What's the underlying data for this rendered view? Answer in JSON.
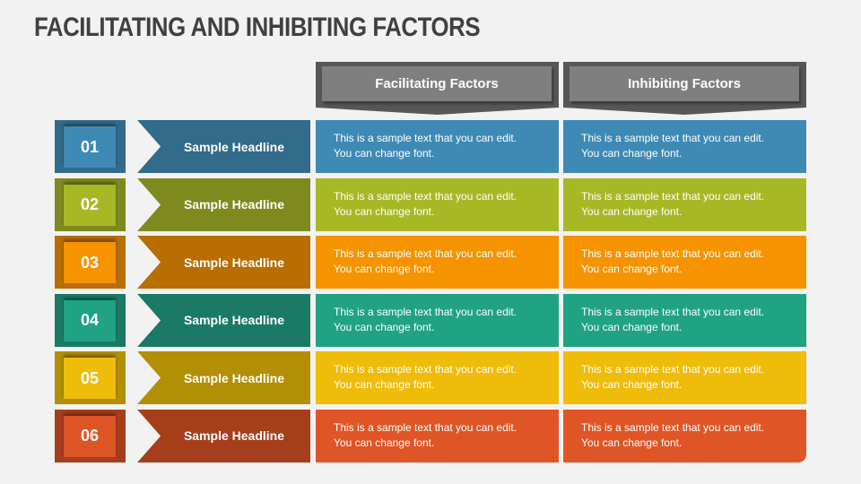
{
  "title": "FACILITATING AND INHIBITING FACTORS",
  "columns": {
    "facilitating": "Facilitating Factors",
    "inhibiting": "Inhibiting Factors"
  },
  "header_colors": {
    "outer": "#575757",
    "inner": "#7f7f7f"
  },
  "rows": [
    {
      "number": "01",
      "headline": "Sample Headline",
      "dark": "#336b8a",
      "light": "#3f8ab5",
      "facilitating": [
        "This is a sample text that you can edit.",
        "You can change font."
      ],
      "inhibiting": [
        "This is a sample text that you can edit.",
        "You can change font."
      ]
    },
    {
      "number": "02",
      "headline": "Sample Headline",
      "dark": "#7e8a1e",
      "light": "#a7b825",
      "facilitating": [
        "This is a sample text that you can edit.",
        "You can change font."
      ],
      "inhibiting": [
        "This is a sample text that you can edit.",
        "You can change font."
      ]
    },
    {
      "number": "03",
      "headline": "Sample Headline",
      "dark": "#b86e00",
      "light": "#f59300",
      "facilitating": [
        "This is a sample text that you can edit.",
        "You can change font."
      ],
      "inhibiting": [
        "This is a sample text that you can edit.",
        "You can change font."
      ]
    },
    {
      "number": "04",
      "headline": "Sample Headline",
      "dark": "#1a7a65",
      "light": "#1fa383",
      "facilitating": [
        "This is a sample text that you can edit.",
        "You can change font."
      ],
      "inhibiting": [
        "This is a sample text that you can edit.",
        "You can change font."
      ]
    },
    {
      "number": "05",
      "headline": "Sample Headline",
      "dark": "#b38f06",
      "light": "#f0bc0a",
      "facilitating": [
        "This is a sample text that you can edit.",
        "You can change font."
      ],
      "inhibiting": [
        "This is a sample text that you can edit.",
        "You can change font."
      ]
    },
    {
      "number": "06",
      "headline": "Sample Headline",
      "dark": "#a63e1c",
      "light": "#e05526",
      "facilitating": [
        "This is a sample text that you can edit.",
        "You can change font."
      ],
      "inhibiting": [
        "This is a sample text that you can edit.",
        "You can change font."
      ]
    }
  ]
}
